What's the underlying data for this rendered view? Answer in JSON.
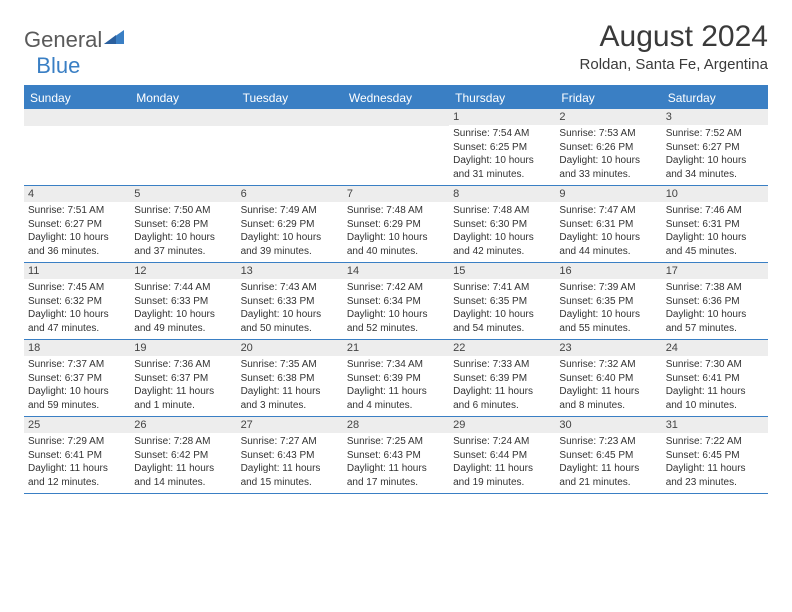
{
  "brand": {
    "part1": "General",
    "part2": "Blue"
  },
  "title": "August 2024",
  "location": "Roldan, Santa Fe, Argentina",
  "colors": {
    "accent": "#3a7fc4",
    "header_bg": "#3a7fc4",
    "header_text": "#ffffff",
    "daynum_bg": "#ededed",
    "text": "#333333",
    "background": "#ffffff"
  },
  "dayNames": [
    "Sunday",
    "Monday",
    "Tuesday",
    "Wednesday",
    "Thursday",
    "Friday",
    "Saturday"
  ],
  "firstWeekday": 4,
  "daysInMonth": 31,
  "days": {
    "1": {
      "sunrise": "7:54 AM",
      "sunset": "6:25 PM",
      "daylight": "10 hours and 31 minutes."
    },
    "2": {
      "sunrise": "7:53 AM",
      "sunset": "6:26 PM",
      "daylight": "10 hours and 33 minutes."
    },
    "3": {
      "sunrise": "7:52 AM",
      "sunset": "6:27 PM",
      "daylight": "10 hours and 34 minutes."
    },
    "4": {
      "sunrise": "7:51 AM",
      "sunset": "6:27 PM",
      "daylight": "10 hours and 36 minutes."
    },
    "5": {
      "sunrise": "7:50 AM",
      "sunset": "6:28 PM",
      "daylight": "10 hours and 37 minutes."
    },
    "6": {
      "sunrise": "7:49 AM",
      "sunset": "6:29 PM",
      "daylight": "10 hours and 39 minutes."
    },
    "7": {
      "sunrise": "7:48 AM",
      "sunset": "6:29 PM",
      "daylight": "10 hours and 40 minutes."
    },
    "8": {
      "sunrise": "7:48 AM",
      "sunset": "6:30 PM",
      "daylight": "10 hours and 42 minutes."
    },
    "9": {
      "sunrise": "7:47 AM",
      "sunset": "6:31 PM",
      "daylight": "10 hours and 44 minutes."
    },
    "10": {
      "sunrise": "7:46 AM",
      "sunset": "6:31 PM",
      "daylight": "10 hours and 45 minutes."
    },
    "11": {
      "sunrise": "7:45 AM",
      "sunset": "6:32 PM",
      "daylight": "10 hours and 47 minutes."
    },
    "12": {
      "sunrise": "7:44 AM",
      "sunset": "6:33 PM",
      "daylight": "10 hours and 49 minutes."
    },
    "13": {
      "sunrise": "7:43 AM",
      "sunset": "6:33 PM",
      "daylight": "10 hours and 50 minutes."
    },
    "14": {
      "sunrise": "7:42 AM",
      "sunset": "6:34 PM",
      "daylight": "10 hours and 52 minutes."
    },
    "15": {
      "sunrise": "7:41 AM",
      "sunset": "6:35 PM",
      "daylight": "10 hours and 54 minutes."
    },
    "16": {
      "sunrise": "7:39 AM",
      "sunset": "6:35 PM",
      "daylight": "10 hours and 55 minutes."
    },
    "17": {
      "sunrise": "7:38 AM",
      "sunset": "6:36 PM",
      "daylight": "10 hours and 57 minutes."
    },
    "18": {
      "sunrise": "7:37 AM",
      "sunset": "6:37 PM",
      "daylight": "10 hours and 59 minutes."
    },
    "19": {
      "sunrise": "7:36 AM",
      "sunset": "6:37 PM",
      "daylight": "11 hours and 1 minute."
    },
    "20": {
      "sunrise": "7:35 AM",
      "sunset": "6:38 PM",
      "daylight": "11 hours and 3 minutes."
    },
    "21": {
      "sunrise": "7:34 AM",
      "sunset": "6:39 PM",
      "daylight": "11 hours and 4 minutes."
    },
    "22": {
      "sunrise": "7:33 AM",
      "sunset": "6:39 PM",
      "daylight": "11 hours and 6 minutes."
    },
    "23": {
      "sunrise": "7:32 AM",
      "sunset": "6:40 PM",
      "daylight": "11 hours and 8 minutes."
    },
    "24": {
      "sunrise": "7:30 AM",
      "sunset": "6:41 PM",
      "daylight": "11 hours and 10 minutes."
    },
    "25": {
      "sunrise": "7:29 AM",
      "sunset": "6:41 PM",
      "daylight": "11 hours and 12 minutes."
    },
    "26": {
      "sunrise": "7:28 AM",
      "sunset": "6:42 PM",
      "daylight": "11 hours and 14 minutes."
    },
    "27": {
      "sunrise": "7:27 AM",
      "sunset": "6:43 PM",
      "daylight": "11 hours and 15 minutes."
    },
    "28": {
      "sunrise": "7:25 AM",
      "sunset": "6:43 PM",
      "daylight": "11 hours and 17 minutes."
    },
    "29": {
      "sunrise": "7:24 AM",
      "sunset": "6:44 PM",
      "daylight": "11 hours and 19 minutes."
    },
    "30": {
      "sunrise": "7:23 AM",
      "sunset": "6:45 PM",
      "daylight": "11 hours and 21 minutes."
    },
    "31": {
      "sunrise": "7:22 AM",
      "sunset": "6:45 PM",
      "daylight": "11 hours and 23 minutes."
    }
  },
  "labels": {
    "sunrise": "Sunrise:",
    "sunset": "Sunset:",
    "daylight": "Daylight:"
  }
}
